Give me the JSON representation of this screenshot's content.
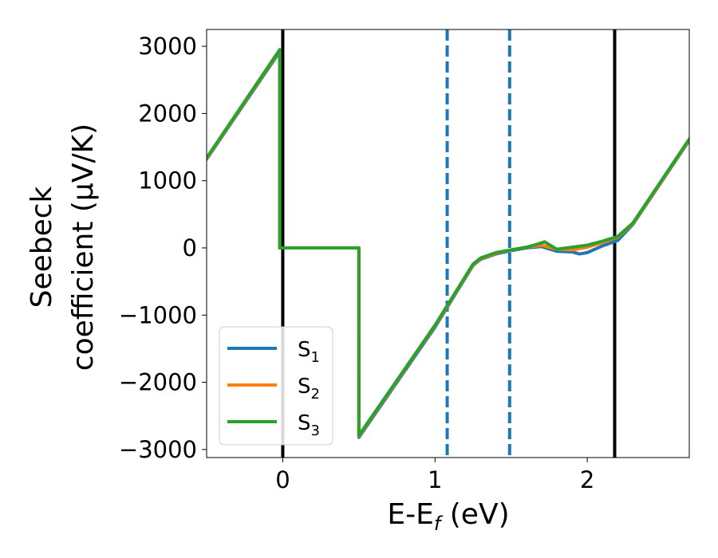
{
  "chart_data": {
    "type": "line",
    "xlabel": {
      "base": "E-E",
      "sub": "f",
      "unit": " (eV)"
    },
    "ylabel": {
      "line1": "Seebeck",
      "line2": "coefficient  (μV/K)"
    },
    "xlim": [
      -0.5,
      2.67
    ],
    "ylim": [
      -3120,
      3250
    ],
    "xticks": [
      {
        "v": 0,
        "label": "0"
      },
      {
        "v": 1,
        "label": "1"
      },
      {
        "v": 2,
        "label": "2"
      }
    ],
    "yticks": [
      {
        "v": 3000,
        "label": "3000"
      },
      {
        "v": 2000,
        "label": "2000"
      },
      {
        "v": 1000,
        "label": "1000"
      },
      {
        "v": 0,
        "label": "0"
      },
      {
        "v": -1000,
        "label": "−1000"
      },
      {
        "v": -2000,
        "label": "−2000"
      },
      {
        "v": -3000,
        "label": "−3000"
      }
    ],
    "grid": false,
    "legend_position": "lower-left",
    "vlines": [
      {
        "x": 0.0,
        "style": "solid",
        "color": "#000000"
      },
      {
        "x": 2.18,
        "style": "solid",
        "color": "#000000"
      },
      {
        "x": 1.08,
        "style": "dashed",
        "color": "#1f77b4"
      },
      {
        "x": 1.49,
        "style": "dashed",
        "color": "#1f77b4"
      }
    ],
    "series": [
      {
        "name": "S",
        "sub": "1",
        "color": "#1f77b4",
        "x": [
          -0.5,
          -0.02,
          -0.02,
          0.5,
          0.5,
          1.0,
          1.25,
          1.3,
          1.4,
          1.5,
          1.6,
          1.7,
          1.8,
          1.9,
          1.95,
          2.0,
          2.1,
          2.2,
          2.3,
          2.67
        ],
        "y": [
          1320,
          2920,
          0,
          0,
          -2820,
          -1180,
          -260,
          -170,
          -90,
          -40,
          0,
          20,
          -50,
          -60,
          -90,
          -70,
          30,
          110,
          350,
          1600
        ]
      },
      {
        "name": "S",
        "sub": "2",
        "color": "#ff7f0e",
        "x": [
          -0.5,
          -0.02,
          -0.02,
          0.5,
          0.5,
          1.0,
          1.25,
          1.3,
          1.4,
          1.5,
          1.6,
          1.7,
          1.8,
          1.9,
          1.95,
          2.0,
          2.1,
          2.2,
          2.3,
          2.67
        ],
        "y": [
          1330,
          2940,
          0,
          0,
          -2800,
          -1160,
          -250,
          -160,
          -80,
          -30,
          10,
          40,
          -20,
          -30,
          -10,
          10,
          80,
          160,
          360,
          1610
        ]
      },
      {
        "name": "S",
        "sub": "3",
        "color": "#2ca02c",
        "x": [
          -0.5,
          -0.02,
          -0.02,
          0.5,
          0.5,
          1.0,
          1.25,
          1.3,
          1.4,
          1.5,
          1.6,
          1.65,
          1.72,
          1.8,
          1.9,
          2.0,
          2.1,
          2.2,
          2.3,
          2.67
        ],
        "y": [
          1340,
          2950,
          0,
          0,
          -2790,
          -1150,
          -240,
          -150,
          -70,
          -30,
          10,
          40,
          90,
          -20,
          10,
          40,
          100,
          170,
          370,
          1620
        ]
      }
    ]
  }
}
